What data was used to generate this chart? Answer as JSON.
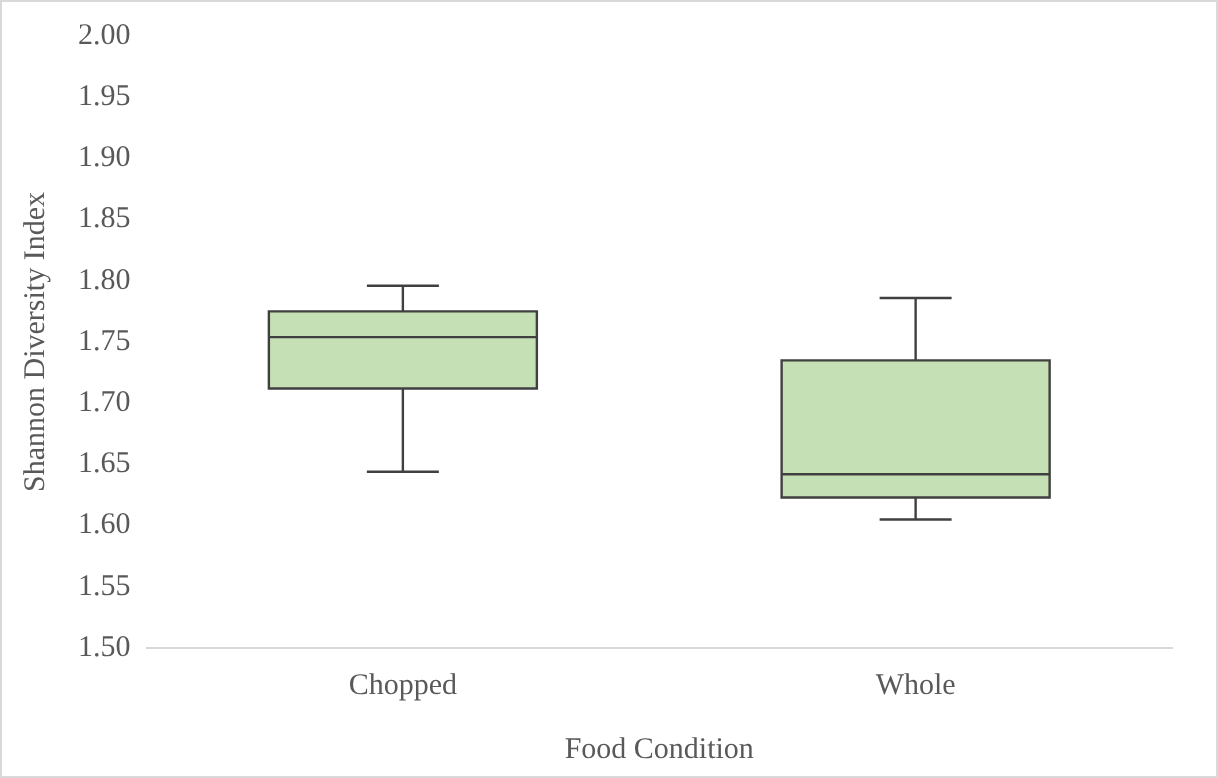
{
  "chart_data": {
    "type": "box",
    "xlabel": "Food Condition",
    "ylabel": "Shannon Diversity Index",
    "categories": [
      "Chopped",
      "Whole"
    ],
    "series": [
      {
        "color": "#c5e0b4",
        "boxes": [
          {
            "low": 1.644,
            "q1": 1.712,
            "median": 1.754,
            "q3": 1.775,
            "high": 1.796
          },
          {
            "low": 1.605,
            "q1": 1.623,
            "median": 1.642,
            "q3": 1.735,
            "high": 1.786
          }
        ]
      }
    ],
    "ylim": [
      1.5,
      2.0
    ],
    "yticks": [
      {
        "value": 1.5,
        "label": "1.50"
      },
      {
        "value": 1.55,
        "label": "1.55"
      },
      {
        "value": 1.6,
        "label": "1.60"
      },
      {
        "value": 1.65,
        "label": "1.65"
      },
      {
        "value": 1.7,
        "label": "1.70"
      },
      {
        "value": 1.75,
        "label": "1.75"
      },
      {
        "value": 1.8,
        "label": "1.80"
      },
      {
        "value": 1.85,
        "label": "1.85"
      },
      {
        "value": 1.9,
        "label": "1.90"
      },
      {
        "value": 1.95,
        "label": "1.95"
      },
      {
        "value": 2.0,
        "label": "2.00"
      }
    ],
    "grid": false,
    "legend": false
  }
}
